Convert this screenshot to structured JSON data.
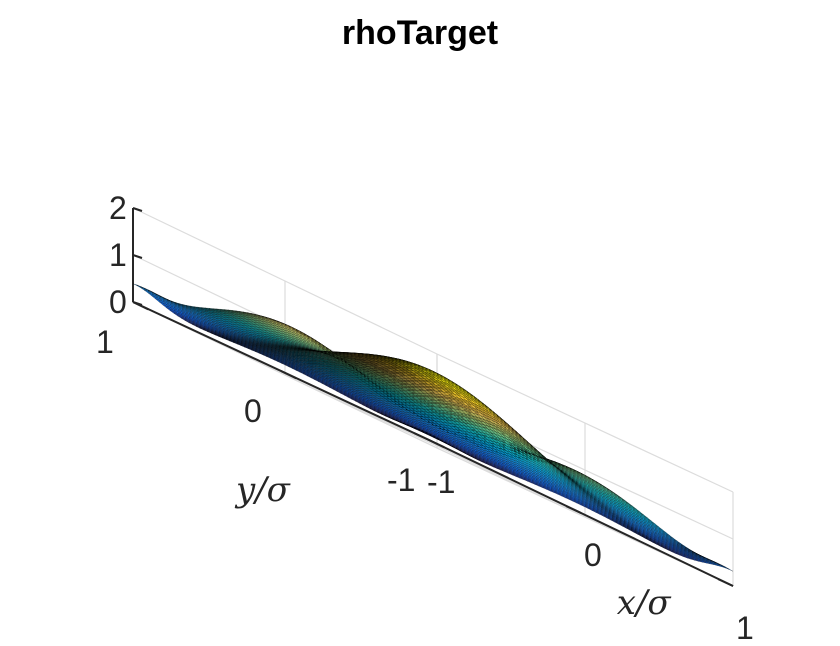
{
  "chart_data": {
    "type": "surface",
    "title": "rhoTarget",
    "xlabel": "x/σ",
    "ylabel": "y/σ",
    "zlabel": "",
    "xlim": [
      -1,
      1
    ],
    "ylim": [
      -1,
      1
    ],
    "zlim": [
      0,
      2
    ],
    "x_ticks": [
      "-1",
      "0",
      "1"
    ],
    "y_ticks": [
      "-1",
      "0",
      "1"
    ],
    "z_ticks": [
      "0",
      "1",
      "2"
    ],
    "grid": true,
    "colormap": "parula",
    "grid_points": 81,
    "peak": {
      "x": 0,
      "y": 0,
      "z": 1.55
    },
    "corner_values": {
      "x=-1,y=-1": 0.15,
      "x=1,y=1": 0.45,
      "x=-1,y=1": 0.3,
      "x=1,y=-1": 0.25
    },
    "edge_midpoint_values": {
      "y=1,x=0": 0.95,
      "x=1,y=0": 0.75,
      "y=-1,x=0": 0.05,
      "x=-1,y=0": 0.05
    }
  }
}
